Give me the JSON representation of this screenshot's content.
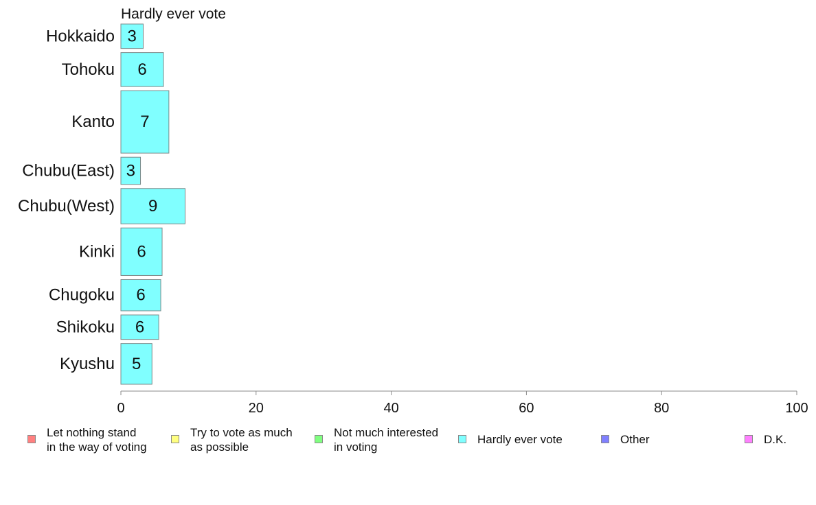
{
  "chart_data": {
    "type": "bar",
    "orientation": "horizontal",
    "title": "Hardly ever vote",
    "categories": [
      "Hokkaido",
      "Tohoku",
      "Kanto",
      "Chubu(East)",
      "Chubu(West)",
      "Kinki",
      "Chugoku",
      "Shikoku",
      "Kyushu"
    ],
    "series": [
      {
        "name": "Hardly ever vote",
        "color": "#80ffff",
        "values": [
          3.3,
          6.3,
          7.1,
          2.9,
          9.5,
          6.1,
          5.9,
          5.6,
          4.6
        ]
      }
    ],
    "data_labels": [
      "3",
      "6",
      "7",
      "3",
      "9",
      "6",
      "6",
      "6",
      "5"
    ],
    "category_weights": [
      0.9,
      1.25,
      2.3,
      1.0,
      1.3,
      1.75,
      1.15,
      0.9,
      1.5
    ],
    "xlim": [
      0,
      100
    ],
    "xticks": [
      "0",
      "20",
      "40",
      "60",
      "80",
      "100"
    ],
    "xlabel": "",
    "ylabel": "",
    "grid": false,
    "legend_position": "bottom",
    "legend": [
      {
        "label": "Let nothing stand\nin the way of voting",
        "color": "#ff8080"
      },
      {
        "label": "Try to vote as much\nas possible",
        "color": "#ffff80"
      },
      {
        "label": "Not much interested\nin voting",
        "color": "#80ff80"
      },
      {
        "label": "Hardly ever vote",
        "color": "#80ffff"
      },
      {
        "label": "Other",
        "color": "#8080ff"
      },
      {
        "label": "D.K.",
        "color": "#ff80ff"
      }
    ]
  }
}
